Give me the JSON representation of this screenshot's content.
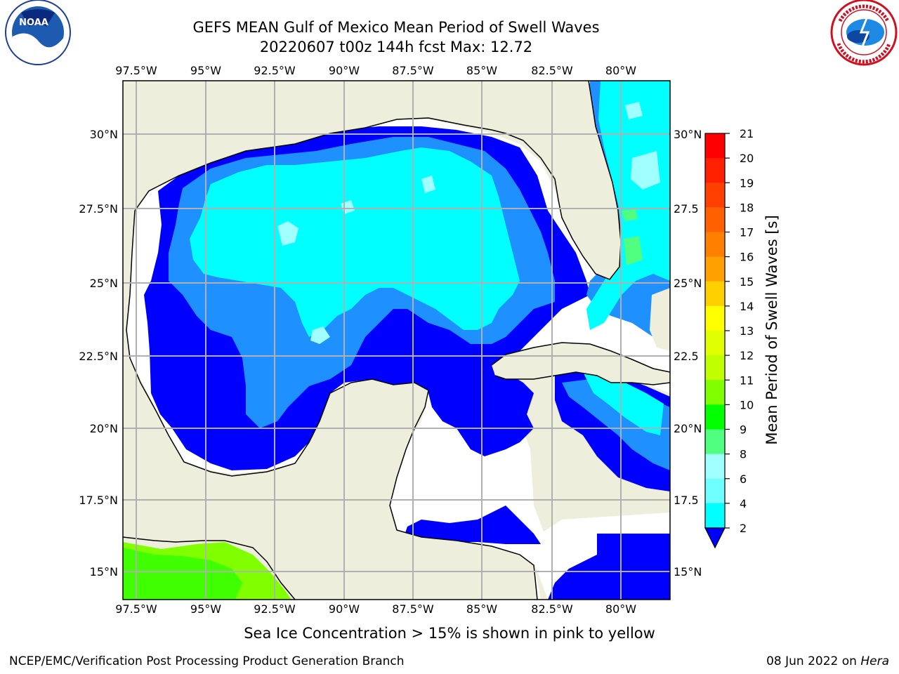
{
  "header": {
    "title_line1": "GEFS MEAN Gulf of Mexico Mean Period of Swell Waves",
    "title_line2": "20220607 t00z 144h fcst   Max: 12.72"
  },
  "logos": {
    "left": {
      "name": "noaa-logo",
      "text": "NOAA"
    },
    "right": {
      "name": "nws-logo"
    }
  },
  "map": {
    "lon_labels": [
      "97.5°W",
      "95°W",
      "92.5°W",
      "90°W",
      "87.5°W",
      "85°W",
      "82.5°W",
      "80°W"
    ],
    "lat_labels_left": [
      "30°N",
      "27.5°N",
      "25°N",
      "22.5°N",
      "20°N",
      "17.5°N",
      "15°N"
    ],
    "lat_labels_right": [
      "30°N",
      "27.5",
      "25°N",
      "22.5",
      "20°N",
      "17.5",
      "15°N"
    ],
    "colors": {
      "land": "#eeeedc",
      "band_2_4": "#0000ff",
      "band_4_6": "#1e90ff",
      "band_6_8": "#00ffff",
      "band_8_9": "#a0ffff",
      "band_9_10": "#50ff80",
      "band_11_12": "#40ff00",
      "band_12_13": "#80ff00"
    }
  },
  "colorbar": {
    "ticks": [
      "21",
      "20",
      "19",
      "18",
      "17",
      "16",
      "15",
      "14",
      "13",
      "12",
      "11",
      "10",
      "9",
      "8",
      "6",
      "4",
      "2"
    ],
    "colors": [
      "#ff0000",
      "#ff2000",
      "#ff4000",
      "#ff6000",
      "#ff8000",
      "#ffa000",
      "#ffd000",
      "#ffff00",
      "#e0ff00",
      "#c0ff00",
      "#80ff00",
      "#00ff00",
      "#50ff80",
      "#a0ffff",
      "#70ffff",
      "#00ffff",
      "#1e90ff"
    ],
    "extend_color": "#0000ff",
    "label": "Mean Period of Swell Waves [s]"
  },
  "footer": {
    "note": "Sea Ice Concentration > 15% is shown in pink to yellow",
    "credit": "NCEP/EMC/Verification Post Processing Product Generation Branch",
    "date": "08 Jun 2022 on ",
    "host": "Hera"
  }
}
